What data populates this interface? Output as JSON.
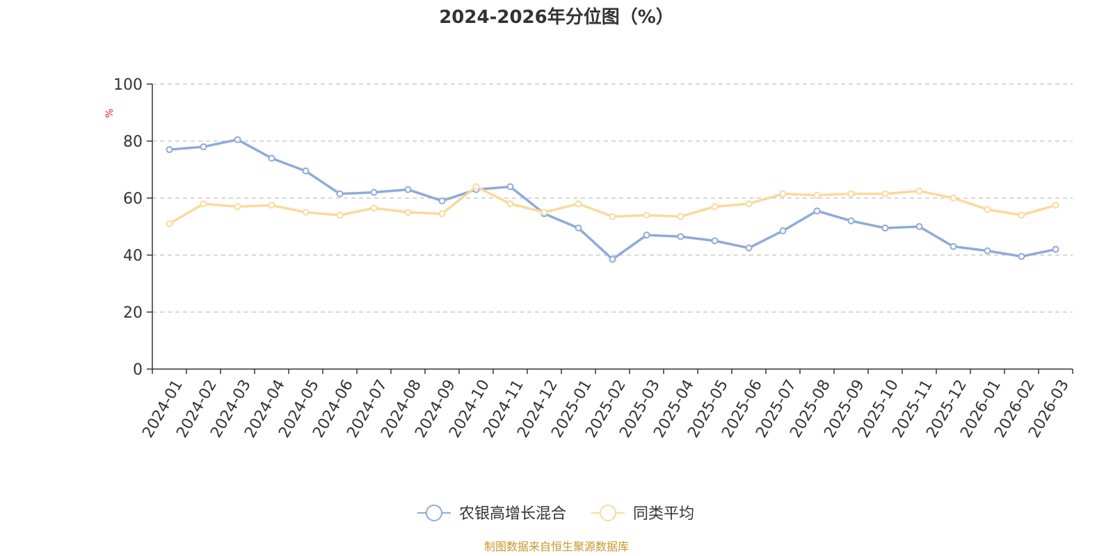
{
  "chart_data": {
    "type": "line",
    "title": "2024-2026年分位图（%）",
    "ylabel": "%",
    "xlabel": "",
    "ylim": [
      0,
      100
    ],
    "yticks": [
      0,
      20,
      40,
      60,
      80,
      100
    ],
    "grid": true,
    "legend_position": "bottom-center",
    "categories": [
      "2024-01",
      "2024-02",
      "2024-03",
      "2024-04",
      "2024-05",
      "2024-06",
      "2024-07",
      "2024-08",
      "2024-09",
      "2024-10",
      "2024-11",
      "2024-12",
      "2025-01",
      "2025-02",
      "2025-03",
      "2025-04",
      "2025-05",
      "2025-06",
      "2025-07",
      "2025-08",
      "2025-09",
      "2025-10",
      "2025-11",
      "2025-12",
      "2026-01",
      "2026-02",
      "2026-03"
    ],
    "series": [
      {
        "name": "农银高增长混合",
        "color": "#8eaadb",
        "values": [
          77,
          78,
          80.5,
          74,
          69.5,
          61.5,
          62,
          63,
          59,
          63,
          64,
          54.5,
          49.5,
          38.5,
          47,
          46.5,
          45,
          42.5,
          48.5,
          55.5,
          52,
          49.5,
          50,
          43,
          41.5,
          39.5,
          42
        ]
      },
      {
        "name": "同类平均",
        "color": "#fbd99a",
        "values": [
          51,
          58,
          57,
          57.5,
          55,
          54,
          56.5,
          55,
          54.5,
          64,
          58,
          55,
          58,
          53.5,
          54,
          53.5,
          57,
          58,
          61.5,
          61,
          61.5,
          61.5,
          62.5,
          60,
          56,
          54,
          57.5
        ]
      }
    ]
  },
  "source_note": "制图数据来自恒生聚源数据库"
}
